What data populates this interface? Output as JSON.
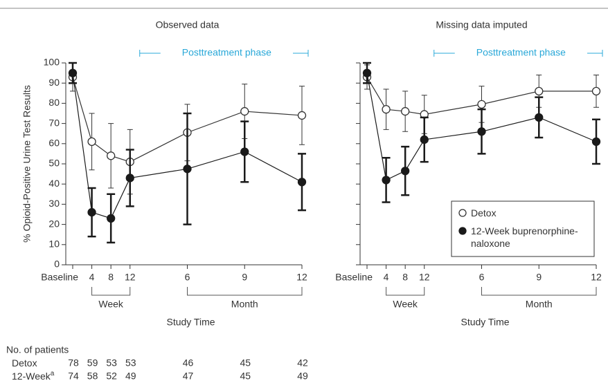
{
  "chart_data": [
    {
      "type": "line",
      "title": "Observed data",
      "ylabel": "% Opioid-Positive Urine Test Results",
      "xlabel": "Study Time",
      "categories": [
        "Baseline",
        "4",
        "8",
        "12",
        "6",
        "9",
        "12"
      ],
      "groups": [
        "Week",
        "Month"
      ],
      "annotation": "Posttreatment phase",
      "ylim": [
        0,
        100
      ],
      "yticks": [
        0,
        10,
        20,
        30,
        40,
        50,
        60,
        70,
        80,
        90,
        100
      ],
      "show_tick_labels": true,
      "series": [
        {
          "name": "Detox",
          "color": "#333333",
          "marker_fill": "#ffffff",
          "values": [
            93,
            61,
            54,
            51,
            65.5,
            76,
            74
          ],
          "errors": [
            7,
            14,
            16,
            16,
            14,
            13.5,
            14.5
          ]
        },
        {
          "name": "12-Week buprenorphine-naloxone",
          "color": "#1a1a1a",
          "marker_fill": "#1a1a1a",
          "values": [
            95,
            26,
            23,
            43,
            47.5,
            56,
            41
          ],
          "errors": [
            5,
            12,
            12,
            14,
            27.5,
            15,
            14
          ]
        }
      ],
      "legend": false
    },
    {
      "type": "line",
      "title": "Missing data imputed",
      "xlabel": "Study Time",
      "categories": [
        "Baseline",
        "4",
        "8",
        "12",
        "6",
        "9",
        "12"
      ],
      "groups": [
        "Week",
        "Month"
      ],
      "annotation": "Posttreatment phase",
      "ylim": [
        0,
        100
      ],
      "yticks": [
        0,
        10,
        20,
        30,
        40,
        50,
        60,
        70,
        80,
        90,
        100
      ],
      "show_tick_labels": false,
      "series": [
        {
          "name": "Detox",
          "color": "#333333",
          "marker_fill": "#ffffff",
          "values": [
            93,
            77,
            76,
            74.5,
            79.5,
            86,
            86
          ],
          "errors": [
            6,
            10,
            10,
            9.5,
            9,
            8,
            8
          ]
        },
        {
          "name": "12-Week buprenorphine-naloxone",
          "color": "#1a1a1a",
          "marker_fill": "#1a1a1a",
          "values": [
            95,
            42,
            46.5,
            62,
            66,
            73,
            61
          ],
          "errors": [
            5,
            11,
            12,
            11,
            11,
            10,
            11
          ]
        }
      ],
      "legend": true
    }
  ],
  "patients_table": {
    "title": "No. of patients",
    "rows": [
      {
        "label": "Detox",
        "values": [
          78,
          59,
          53,
          53,
          46,
          45,
          42
        ]
      },
      {
        "label": "12-Week",
        "footnote": "a",
        "values": [
          74,
          58,
          52,
          49,
          47,
          45,
          49
        ]
      }
    ]
  }
}
